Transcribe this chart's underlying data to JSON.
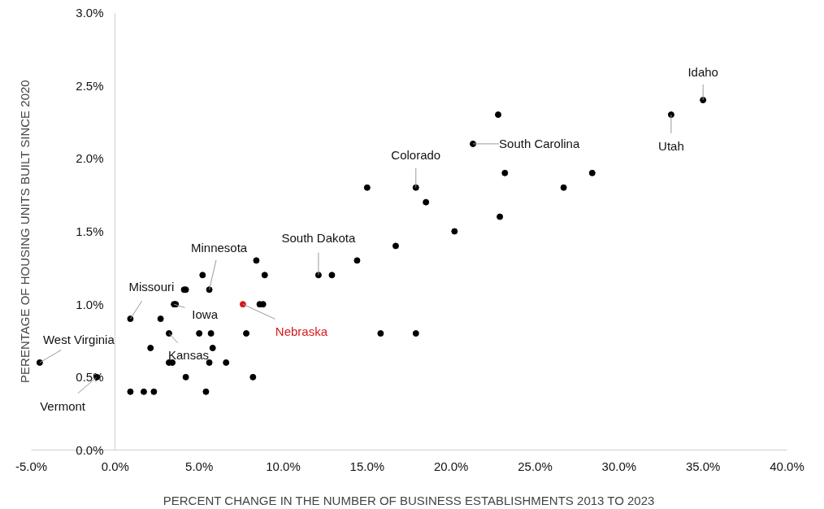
{
  "chart_data": {
    "type": "scatter",
    "xlabel": "PERCENT CHANGE IN THE NUMBER OF BUSINESS ESTABLISHMENTS 2013 TO 2023",
    "ylabel": "PERENTAGE OF HOUSING UNITS BUILT SINCE 2020",
    "x": [
      -4.5,
      -1.1,
      0.9,
      0.9,
      1.7,
      2.3,
      2.1,
      2.7,
      3.2,
      3.2,
      3.4,
      3.5,
      3.6,
      4.1,
      4.2,
      4.2,
      5.0,
      5.2,
      5.4,
      5.6,
      5.6,
      5.7,
      5.8,
      6.6,
      7.6,
      7.8,
      8.2,
      8.4,
      8.6,
      8.8,
      8.9,
      12.1,
      12.9,
      14.4,
      15.0,
      15.8,
      16.7,
      17.9,
      17.9,
      18.5,
      20.2,
      21.3,
      22.8,
      22.9,
      23.2,
      26.7,
      28.4,
      33.1,
      35.0
    ],
    "values": [
      0.6,
      0.5,
      0.9,
      0.4,
      0.4,
      0.4,
      0.7,
      0.9,
      0.8,
      0.6,
      0.6,
      1.0,
      1.0,
      1.1,
      1.1,
      0.5,
      0.8,
      1.2,
      0.4,
      1.1,
      0.6,
      0.8,
      0.7,
      0.6,
      1.0,
      0.8,
      0.5,
      1.3,
      1.0,
      1.0,
      1.2,
      1.2,
      1.2,
      1.3,
      1.8,
      0.8,
      1.4,
      1.8,
      0.8,
      1.7,
      1.5,
      2.1,
      2.3,
      1.6,
      1.9,
      1.8,
      1.9,
      2.3,
      2.4
    ],
    "colors": [
      "#000000",
      "#000000",
      "#000000",
      "#000000",
      "#000000",
      "#000000",
      "#000000",
      "#000000",
      "#000000",
      "#000000",
      "#000000",
      "#000000",
      "#000000",
      "#000000",
      "#000000",
      "#000000",
      "#000000",
      "#000000",
      "#000000",
      "#000000",
      "#000000",
      "#000000",
      "#000000",
      "#000000",
      "#d7191c",
      "#000000",
      "#000000",
      "#000000",
      "#000000",
      "#000000",
      "#000000",
      "#000000",
      "#000000",
      "#000000",
      "#000000",
      "#000000",
      "#000000",
      "#000000",
      "#000000",
      "#000000",
      "#000000",
      "#000000",
      "#000000",
      "#000000",
      "#000000",
      "#000000",
      "#000000",
      "#000000",
      "#000000"
    ],
    "marker": "circle",
    "xlim": [
      -5,
      40
    ],
    "ylim": [
      0,
      3
    ],
    "xticks": [
      {
        "value": -5,
        "label": "-5.0%"
      },
      {
        "value": 0,
        "label": "0.0%"
      },
      {
        "value": 5,
        "label": "5.0%"
      },
      {
        "value": 10,
        "label": "10.0%"
      },
      {
        "value": 15,
        "label": "15.0%"
      },
      {
        "value": 20,
        "label": "20.0%"
      },
      {
        "value": 25,
        "label": "25.0%"
      },
      {
        "value": 30,
        "label": "30.0%"
      },
      {
        "value": 35,
        "label": "35.0%"
      },
      {
        "value": 40,
        "label": "40.0%"
      }
    ],
    "yticks": [
      {
        "value": 0,
        "label": "0.0%"
      },
      {
        "value": 0.5,
        "label": "0.5%"
      },
      {
        "value": 1,
        "label": "1.0%"
      },
      {
        "value": 1.5,
        "label": "1.5%"
      },
      {
        "value": 2,
        "label": "2.0%"
      },
      {
        "value": 2.5,
        "label": "2.5%"
      },
      {
        "value": 3,
        "label": "3.0%"
      }
    ],
    "grid": false,
    "annotations": [
      {
        "text": "West Virginia",
        "x": -4.5,
        "y": 0.6
      },
      {
        "text": "Vermont",
        "x": -1.1,
        "y": 0.5
      },
      {
        "text": "Missouri",
        "x": 0.9,
        "y": 0.9
      },
      {
        "text": "Iowa",
        "x": 3.5,
        "y": 1.0
      },
      {
        "text": "Kansas",
        "x": 3.2,
        "y": 0.8
      },
      {
        "text": "Minnesota",
        "x": 5.6,
        "y": 1.1
      },
      {
        "text": "Nebraska",
        "x": 7.6,
        "y": 1.0
      },
      {
        "text": "South Dakota",
        "x": 12.1,
        "y": 1.2
      },
      {
        "text": "Colorado",
        "x": 17.9,
        "y": 1.8
      },
      {
        "text": "South Carolina",
        "x": 21.3,
        "y": 2.1
      },
      {
        "text": "Utah",
        "x": 33.1,
        "y": 2.3
      },
      {
        "text": "Idaho",
        "x": 35.0,
        "y": 2.4
      }
    ]
  }
}
